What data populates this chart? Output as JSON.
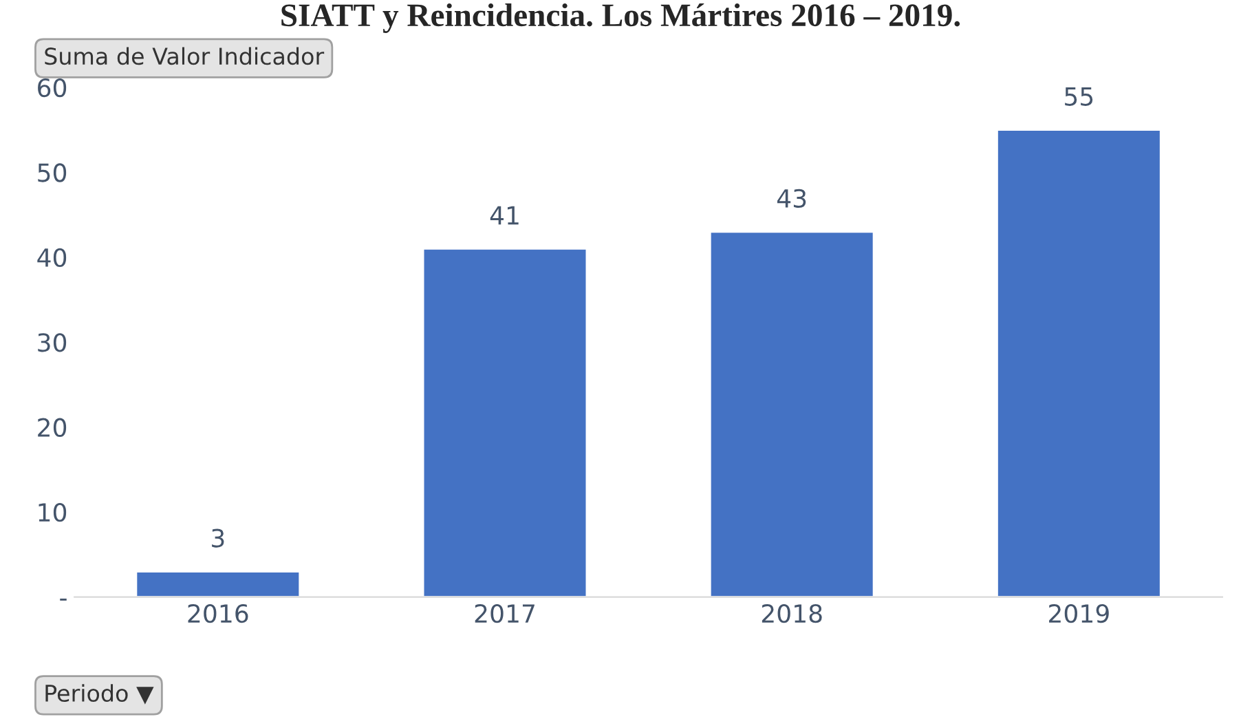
{
  "chart_data": {
    "type": "bar",
    "title": "SIATT y Reincidencia. Los Mártires 2016 – 2019.",
    "categories": [
      "2016",
      "2017",
      "2018",
      "2019"
    ],
    "values": [
      3,
      41,
      43,
      55
    ],
    "color": "#4472c4",
    "ylim": [
      0,
      60
    ],
    "yticks": [
      {
        "value": 0,
        "label": "-"
      },
      10,
      20,
      30,
      40,
      50,
      60
    ],
    "data_labels": true,
    "grid": false,
    "annotations": [
      "Suma de Valor Indicador",
      "Periodo ▼"
    ]
  }
}
